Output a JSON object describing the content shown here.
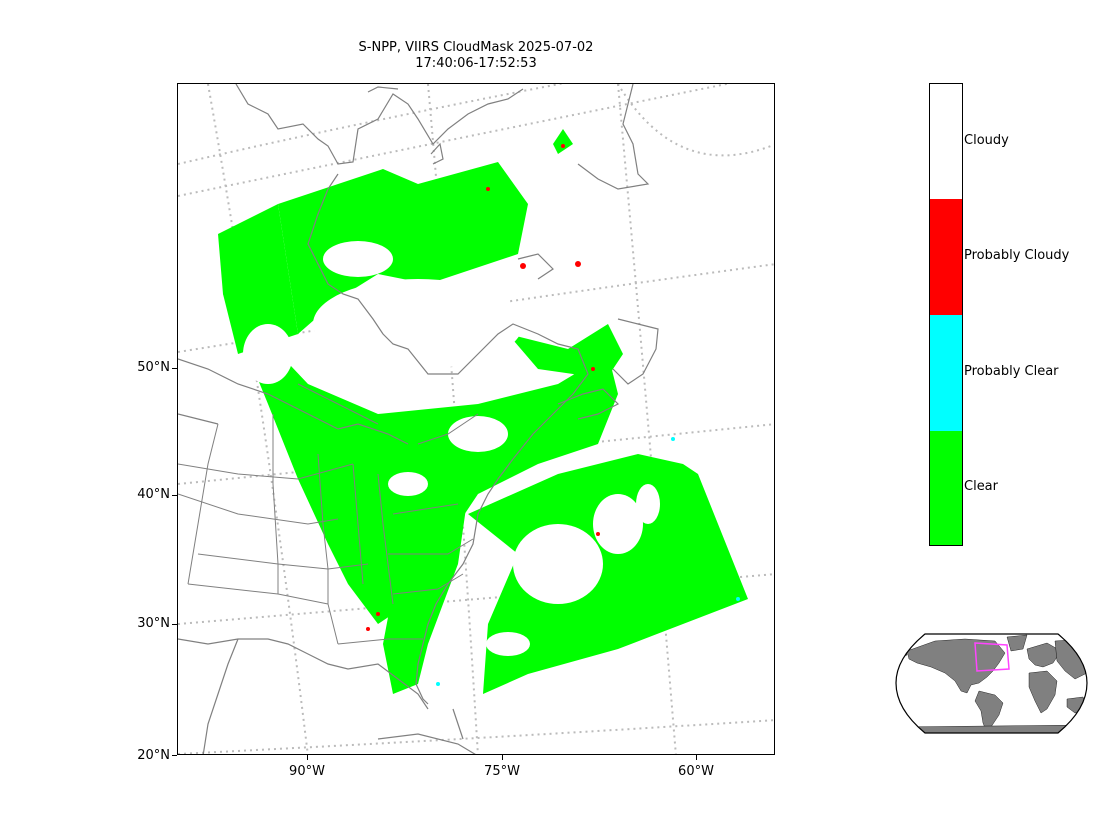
{
  "title": {
    "line1": "S-NPP, VIIRS CloudMask 2025-07-02",
    "line2": "17:40:06-17:52:53"
  },
  "map": {
    "lat_labels": [
      "50°N",
      "40°N",
      "30°N",
      "20°N"
    ],
    "lon_labels": [
      "90°W",
      "75°W",
      "60°W"
    ],
    "coastline_color": "#808080",
    "state_border_color": "#808080",
    "graticule_color": "#bbbbbb"
  },
  "colorbar": {
    "categories": [
      {
        "label": "Cloudy",
        "color": "#ffffff"
      },
      {
        "label": "Probably Cloudy",
        "color": "#ff0000"
      },
      {
        "label": "Probably Clear",
        "color": "#00ffff"
      },
      {
        "label": "Clear",
        "color": "#00ff00"
      }
    ]
  },
  "inset": {
    "land_color": "#808080",
    "outline_color": "#ff00ff",
    "icon": "globe-locator-icon"
  }
}
